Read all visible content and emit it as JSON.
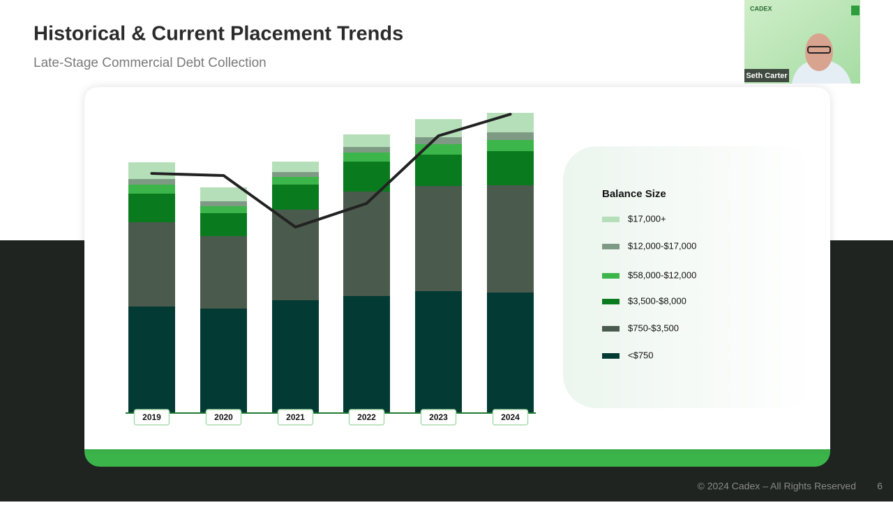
{
  "chart_data": {
    "type": "stacked_bar_line",
    "title": "Historical & Current Placement Trends",
    "subtitle": "Late-Stage Commercial Debt Collection",
    "legend_title": "Balance Size",
    "categories": [
      "2019",
      "2020",
      "2021",
      "2022",
      "2023",
      "2024"
    ],
    "series": [
      {
        "name": "<$750",
        "color": "#033a33",
        "values": [
          153,
          150,
          162,
          168,
          175,
          173
        ]
      },
      {
        "name": "$750-$3,500",
        "color": "#4a5a4c",
        "values": [
          121,
          104,
          130,
          150,
          151,
          154
        ]
      },
      {
        "name": "$3,500-$8,000",
        "color": "#0a7a1f",
        "values": [
          41,
          33,
          36,
          43,
          45,
          49
        ]
      },
      {
        "name": "$58,000-$12,000",
        "color": "#3cb54a",
        "values": [
          13,
          10,
          11,
          13,
          15,
          16
        ]
      },
      {
        "name": "$12,000-$17,000",
        "color": "#7f9a84",
        "values": [
          8,
          7,
          7,
          8,
          10,
          11
        ]
      },
      {
        "name": "$17,000+",
        "color": "#b5dfb8",
        "values": [
          24,
          20,
          15,
          18,
          26,
          28
        ]
      }
    ],
    "line": {
      "color": "#222222",
      "values": [
        344,
        341,
        267,
        301,
        398,
        429
      ]
    },
    "ylim": [
      0,
      443
    ]
  },
  "webcam": {
    "logo": "CADEX",
    "name": "Seth Carter"
  },
  "footer": "© 2024 Cadex – All Rights Reserved",
  "page_number": "6"
}
